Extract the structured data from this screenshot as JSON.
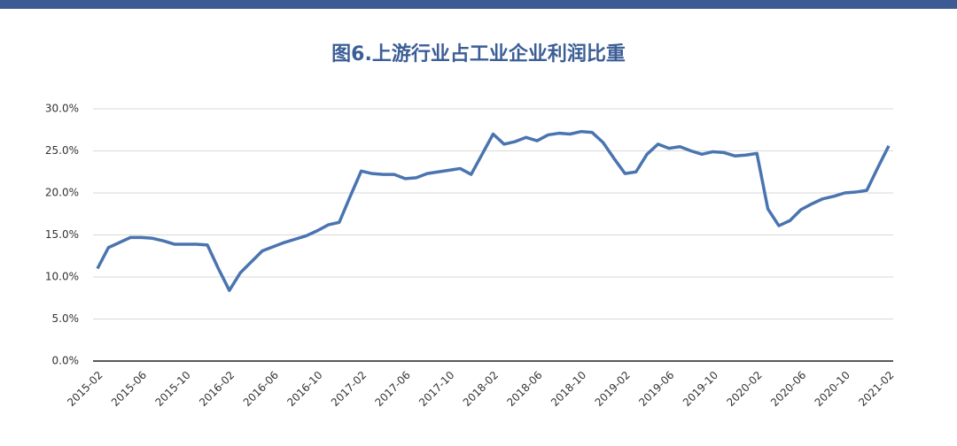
{
  "chart_data": {
    "type": "line",
    "title": "图6.上游行业占工业企业利润比重",
    "categories": [
      "2015-02",
      null,
      null,
      null,
      "2015-06",
      null,
      null,
      null,
      "2015-10",
      null,
      null,
      null,
      "2016-02",
      null,
      null,
      null,
      "2016-06",
      null,
      null,
      null,
      "2016-10",
      null,
      null,
      null,
      "2017-02",
      null,
      null,
      null,
      "2017-06",
      null,
      null,
      null,
      "2017-10",
      null,
      null,
      null,
      "2018-02",
      null,
      null,
      null,
      "2018-06",
      null,
      null,
      null,
      "2018-10",
      null,
      null,
      null,
      "2019-02",
      null,
      null,
      null,
      "2019-06",
      null,
      null,
      null,
      "2019-10",
      null,
      null,
      null,
      "2020-02",
      null,
      null,
      null,
      "2020-06",
      null,
      null,
      null,
      "2020-10",
      null,
      null,
      null,
      "2021-02"
    ],
    "values": [
      11.0,
      13.5,
      14.1,
      14.7,
      14.7,
      14.6,
      14.3,
      13.9,
      13.9,
      13.9,
      13.8,
      11.0,
      8.4,
      10.5,
      11.8,
      13.1,
      13.6,
      14.1,
      14.5,
      14.9,
      15.5,
      16.2,
      16.5,
      19.6,
      22.6,
      22.3,
      22.2,
      22.2,
      21.7,
      21.8,
      22.3,
      22.5,
      22.7,
      22.9,
      22.2,
      24.6,
      27.0,
      25.8,
      26.1,
      26.6,
      26.2,
      26.9,
      27.1,
      27.0,
      27.3,
      27.2,
      26.0,
      24.1,
      22.3,
      22.5,
      24.6,
      25.8,
      25.3,
      25.5,
      25.0,
      24.6,
      24.9,
      24.8,
      24.4,
      24.5,
      24.7,
      18.1,
      16.1,
      16.7,
      18.0,
      18.7,
      19.3,
      19.6,
      20.0,
      20.1,
      20.3,
      23.0,
      25.6
    ],
    "color": "#4a74b0",
    "ylim": [
      0,
      30
    ],
    "yticks": [
      {
        "value": 0,
        "label": "0.0%"
      },
      {
        "value": 5,
        "label": "5.0%"
      },
      {
        "value": 10,
        "label": "10.0%"
      },
      {
        "value": 15,
        "label": "15.0%"
      },
      {
        "value": 20,
        "label": "20.0%"
      },
      {
        "value": 25,
        "label": "25.0%"
      },
      {
        "value": 30,
        "label": "30.0%"
      }
    ],
    "grid": true
  }
}
